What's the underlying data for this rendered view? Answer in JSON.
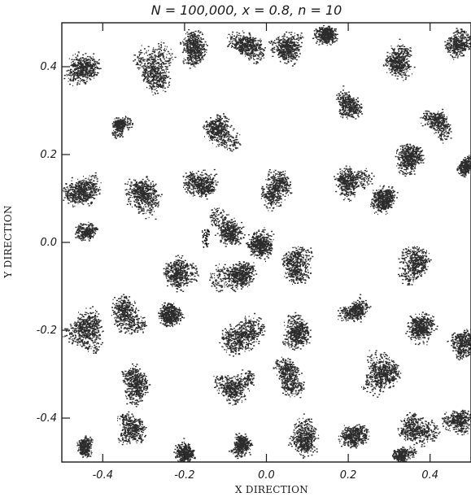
{
  "chart_data": {
    "type": "scatter",
    "title": "N = 100,000, x = 0.8, n = 10",
    "xlabel": "X DIRECTION",
    "ylabel": "Y DIRECTION",
    "xlim": [
      -0.5,
      0.5
    ],
    "ylim": [
      -0.5,
      0.5
    ],
    "grid": false,
    "x_ticks": [
      -0.4,
      -0.2,
      0.0,
      0.2,
      0.4
    ],
    "x_tick_labels": [
      "-0.4",
      "-0.2",
      "0.0",
      "0.2",
      "0.4"
    ],
    "y_ticks": [
      -0.4,
      -0.2,
      0.0,
      0.2,
      0.4
    ],
    "y_tick_labels": [
      "-0.4",
      "-0.2",
      "0.0",
      "0.2",
      "0.4"
    ],
    "point_color": "#2b2b2b",
    "point_count": 100000,
    "clusters": [
      {
        "x": -0.45,
        "y": 0.4,
        "r": 0.05
      },
      {
        "x": -0.28,
        "y": 0.4,
        "r": 0.06
      },
      {
        "x": -0.18,
        "y": 0.44,
        "r": 0.05
      },
      {
        "x": -0.05,
        "y": 0.45,
        "r": 0.05
      },
      {
        "x": 0.05,
        "y": 0.44,
        "r": 0.05
      },
      {
        "x": 0.15,
        "y": 0.47,
        "r": 0.04
      },
      {
        "x": 0.32,
        "y": 0.41,
        "r": 0.05
      },
      {
        "x": 0.46,
        "y": 0.46,
        "r": 0.04
      },
      {
        "x": 0.42,
        "y": 0.27,
        "r": 0.04
      },
      {
        "x": -0.1,
        "y": 0.26,
        "r": 0.05
      },
      {
        "x": 0.2,
        "y": 0.31,
        "r": 0.04
      },
      {
        "x": 0.36,
        "y": 0.2,
        "r": 0.05
      },
      {
        "x": 0.48,
        "y": 0.18,
        "r": 0.03
      },
      {
        "x": -0.44,
        "y": 0.12,
        "r": 0.06
      },
      {
        "x": -0.3,
        "y": 0.12,
        "r": 0.06
      },
      {
        "x": -0.15,
        "y": 0.13,
        "r": 0.05
      },
      {
        "x": 0.04,
        "y": 0.12,
        "r": 0.05
      },
      {
        "x": 0.2,
        "y": 0.15,
        "r": 0.05
      },
      {
        "x": 0.28,
        "y": 0.1,
        "r": 0.05
      },
      {
        "x": -0.45,
        "y": 0.03,
        "r": 0.03
      },
      {
        "x": -0.1,
        "y": 0.03,
        "r": 0.05
      },
      {
        "x": 0.0,
        "y": 0.0,
        "r": 0.05
      },
      {
        "x": -0.2,
        "y": -0.07,
        "r": 0.05
      },
      {
        "x": -0.07,
        "y": -0.08,
        "r": 0.06
      },
      {
        "x": 0.08,
        "y": -0.06,
        "r": 0.05
      },
      {
        "x": 0.37,
        "y": -0.05,
        "r": 0.05
      },
      {
        "x": -0.45,
        "y": -0.2,
        "r": 0.06
      },
      {
        "x": -0.34,
        "y": -0.16,
        "r": 0.05
      },
      {
        "x": -0.24,
        "y": -0.16,
        "r": 0.05
      },
      {
        "x": -0.05,
        "y": -0.22,
        "r": 0.06
      },
      {
        "x": 0.08,
        "y": -0.2,
        "r": 0.05
      },
      {
        "x": 0.22,
        "y": -0.16,
        "r": 0.04
      },
      {
        "x": 0.38,
        "y": -0.18,
        "r": 0.05
      },
      {
        "x": 0.48,
        "y": -0.24,
        "r": 0.04
      },
      {
        "x": -0.32,
        "y": -0.32,
        "r": 0.05
      },
      {
        "x": -0.08,
        "y": -0.33,
        "r": 0.05
      },
      {
        "x": 0.05,
        "y": -0.3,
        "r": 0.05
      },
      {
        "x": 0.28,
        "y": -0.3,
        "r": 0.06
      },
      {
        "x": -0.33,
        "y": -0.42,
        "r": 0.04
      },
      {
        "x": -0.2,
        "y": -0.47,
        "r": 0.04
      },
      {
        "x": -0.06,
        "y": -0.46,
        "r": 0.04
      },
      {
        "x": 0.1,
        "y": -0.44,
        "r": 0.05
      },
      {
        "x": 0.22,
        "y": -0.44,
        "r": 0.05
      },
      {
        "x": 0.38,
        "y": -0.43,
        "r": 0.05
      },
      {
        "x": 0.47,
        "y": -0.4,
        "r": 0.04
      },
      {
        "x": -0.45,
        "y": -0.47,
        "r": 0.03
      },
      {
        "x": 0.33,
        "y": -0.48,
        "r": 0.03
      },
      {
        "x": -0.36,
        "y": 0.27,
        "r": 0.03
      }
    ],
    "highlighted_cluster": {
      "x": -0.15,
      "y": 0.01,
      "r": 0.02
    }
  }
}
